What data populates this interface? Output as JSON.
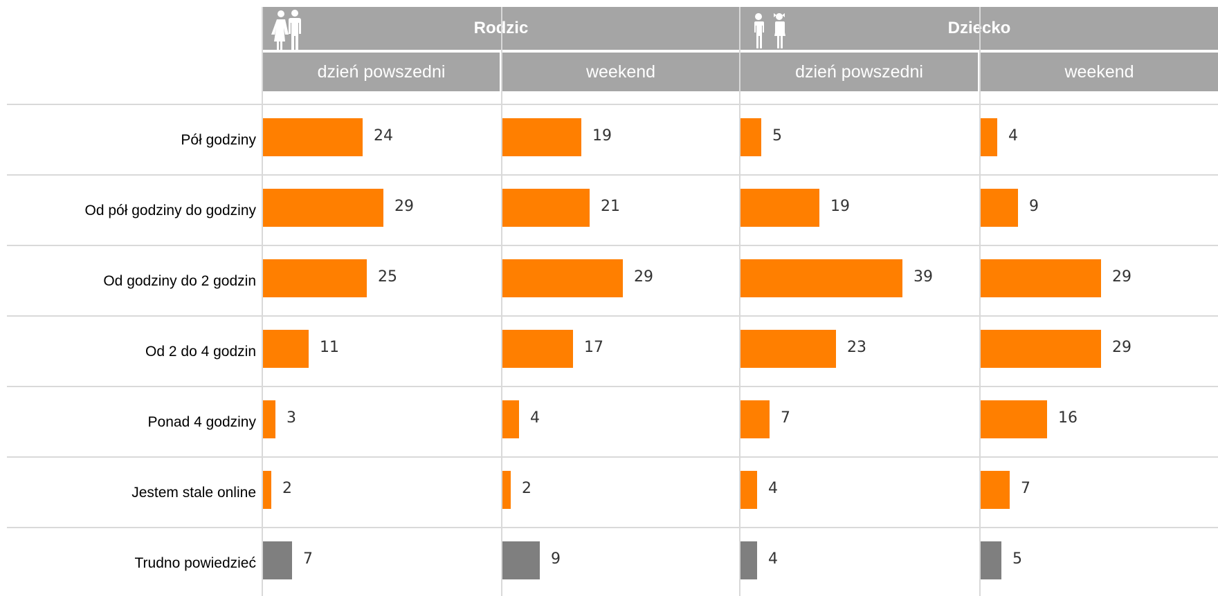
{
  "colors": {
    "header_bg": "#a5a5a5",
    "bar_main": "#ff7f00",
    "bar_dontknow": "#7f7f7f",
    "grid": "#d9d9d9"
  },
  "groups": [
    {
      "title": "Rodzic",
      "icon": "parents-couple-icon"
    },
    {
      "title": "Dziecko",
      "icon": "children-boy-girl-icon"
    }
  ],
  "subheaders": [
    "dzień powszedni",
    "weekend",
    "dzień powszedni",
    "weekend"
  ],
  "chart_data": {
    "type": "bar",
    "orientation": "horizontal",
    "categories": [
      "Pół godziny",
      "Od pół godziny do godziny",
      "Od godziny do 2 godzin",
      "Od 2 do 4 godzin",
      "Ponad 4 godziny",
      "Jestem stale online",
      "Trudno powiedzieć"
    ],
    "series": [
      {
        "group": "Rodzic",
        "name": "dzień powszedni",
        "values": [
          24,
          29,
          25,
          11,
          3,
          2,
          7
        ]
      },
      {
        "group": "Rodzic",
        "name": "weekend",
        "values": [
          19,
          21,
          29,
          17,
          4,
          2,
          9
        ]
      },
      {
        "group": "Dziecko",
        "name": "dzień powszedni",
        "values": [
          5,
          19,
          39,
          23,
          7,
          4,
          4
        ]
      },
      {
        "group": "Dziecko",
        "name": "weekend",
        "values": [
          4,
          9,
          29,
          29,
          16,
          7,
          5
        ]
      }
    ],
    "highlight_last_category_gray": true,
    "xlim": [
      0,
      100
    ],
    "grid": true
  }
}
